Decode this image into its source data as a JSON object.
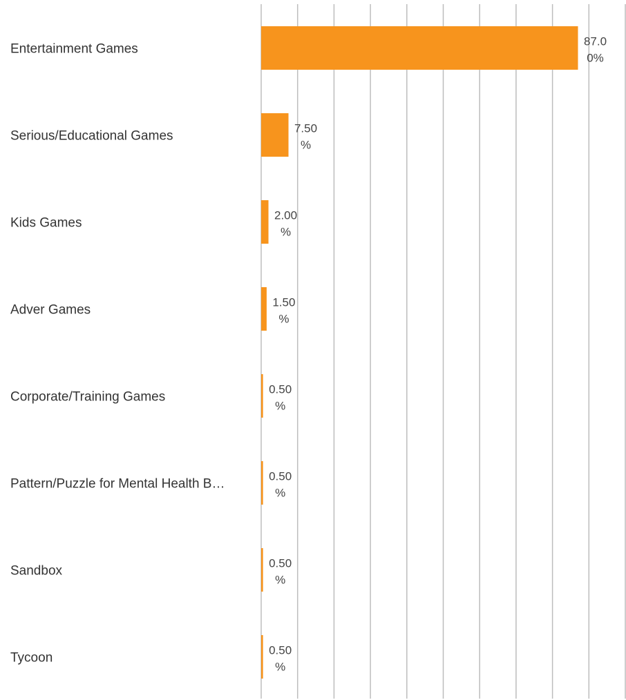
{
  "chart_data": {
    "type": "bar",
    "orientation": "horizontal",
    "categories": [
      "Entertainment Games",
      "Serious/Educational Games",
      "Kids Games",
      "Adver Games",
      "Corporate/Training Games",
      "Pattern/Puzzle for Mental Health B…",
      "Sandbox",
      "Tycoon"
    ],
    "values": [
      87.0,
      7.5,
      2.0,
      1.5,
      0.5,
      0.5,
      0.5,
      0.5
    ],
    "value_labels": [
      [
        "87.0",
        "0%"
      ],
      [
        "7.50",
        "%"
      ],
      [
        "2.00",
        "%"
      ],
      [
        "1.50",
        "%"
      ],
      [
        "0.50",
        "%"
      ],
      [
        "0.50",
        "%"
      ],
      [
        "0.50",
        "%"
      ],
      [
        "0.50",
        "%"
      ]
    ],
    "unit": "%",
    "xlim": [
      0,
      100
    ],
    "gridline_step": 10,
    "grid": true,
    "legend": "none",
    "title": "",
    "xlabel": "",
    "ylabel": "",
    "colors": {
      "bar": "#F7941D",
      "grid": "#BDBDBD",
      "label": "#333333"
    }
  }
}
